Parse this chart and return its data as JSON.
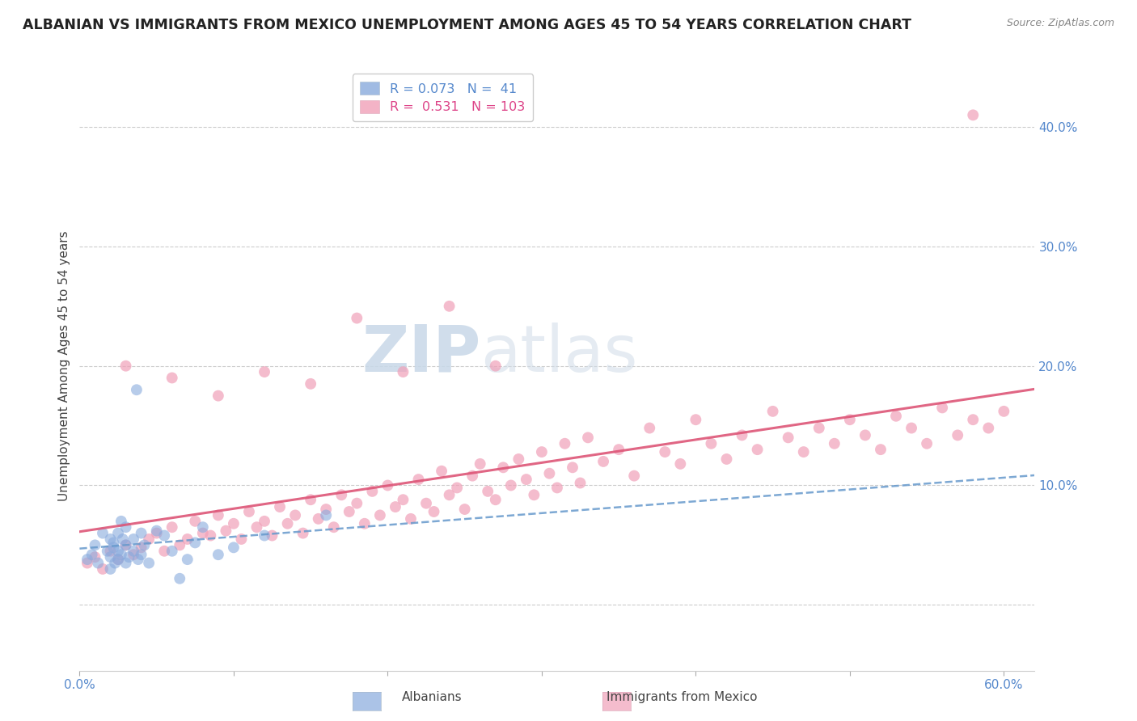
{
  "title": "ALBANIAN VS IMMIGRANTS FROM MEXICO UNEMPLOYMENT AMONG AGES 45 TO 54 YEARS CORRELATION CHART",
  "source": "Source: ZipAtlas.com",
  "ylabel": "Unemployment Among Ages 45 to 54 years",
  "xlim": [
    0.0,
    0.62
  ],
  "ylim": [
    -0.055,
    0.455
  ],
  "yticks": [
    0.0,
    0.1,
    0.2,
    0.3,
    0.4
  ],
  "ytick_labels": [
    "",
    "10.0%",
    "20.0%",
    "30.0%",
    "40.0%"
  ],
  "xticks": [
    0.0,
    0.1,
    0.2,
    0.3,
    0.4,
    0.5,
    0.6
  ],
  "xtick_labels": [
    "0.0%",
    "",
    "",
    "",
    "",
    "",
    "60.0%"
  ],
  "grid_color": "#cccccc",
  "background_color": "#ffffff",
  "watermark_zip": "ZIP",
  "watermark_atlas": "atlas",
  "albanian": {
    "R": 0.073,
    "N": 41,
    "color": "#88aadd",
    "line_color": "#6699cc",
    "label": "Albanians",
    "x": [
      0.005,
      0.008,
      0.01,
      0.012,
      0.015,
      0.018,
      0.02,
      0.02,
      0.02,
      0.022,
      0.022,
      0.023,
      0.025,
      0.025,
      0.025,
      0.027,
      0.027,
      0.028,
      0.03,
      0.03,
      0.03,
      0.032,
      0.035,
      0.035,
      0.037,
      0.038,
      0.04,
      0.04,
      0.042,
      0.045,
      0.05,
      0.055,
      0.06,
      0.065,
      0.07,
      0.075,
      0.08,
      0.09,
      0.1,
      0.12,
      0.16
    ],
    "y": [
      0.038,
      0.042,
      0.05,
      0.035,
      0.06,
      0.045,
      0.055,
      0.04,
      0.03,
      0.048,
      0.052,
      0.035,
      0.06,
      0.045,
      0.038,
      0.07,
      0.042,
      0.055,
      0.05,
      0.035,
      0.065,
      0.04,
      0.045,
      0.055,
      0.18,
      0.038,
      0.06,
      0.042,
      0.05,
      0.035,
      0.062,
      0.058,
      0.045,
      0.022,
      0.038,
      0.052,
      0.065,
      0.042,
      0.048,
      0.058,
      0.075
    ]
  },
  "mexico": {
    "R": 0.531,
    "N": 103,
    "color": "#f0a0b8",
    "line_color": "#dd5577",
    "label": "Immigrants from Mexico",
    "x": [
      0.005,
      0.01,
      0.015,
      0.02,
      0.025,
      0.03,
      0.035,
      0.04,
      0.045,
      0.05,
      0.055,
      0.06,
      0.065,
      0.07,
      0.075,
      0.08,
      0.085,
      0.09,
      0.095,
      0.1,
      0.105,
      0.11,
      0.115,
      0.12,
      0.125,
      0.13,
      0.135,
      0.14,
      0.145,
      0.15,
      0.155,
      0.16,
      0.165,
      0.17,
      0.175,
      0.18,
      0.185,
      0.19,
      0.195,
      0.2,
      0.205,
      0.21,
      0.215,
      0.22,
      0.225,
      0.23,
      0.235,
      0.24,
      0.245,
      0.25,
      0.255,
      0.26,
      0.265,
      0.27,
      0.275,
      0.28,
      0.285,
      0.29,
      0.295,
      0.3,
      0.305,
      0.31,
      0.315,
      0.32,
      0.325,
      0.33,
      0.34,
      0.35,
      0.36,
      0.37,
      0.38,
      0.39,
      0.4,
      0.41,
      0.42,
      0.43,
      0.44,
      0.45,
      0.46,
      0.47,
      0.48,
      0.49,
      0.5,
      0.51,
      0.52,
      0.53,
      0.54,
      0.55,
      0.56,
      0.57,
      0.58,
      0.59,
      0.6,
      0.03,
      0.06,
      0.09,
      0.12,
      0.15,
      0.18,
      0.21,
      0.24,
      0.27,
      0.58
    ],
    "y": [
      0.035,
      0.04,
      0.03,
      0.045,
      0.038,
      0.05,
      0.042,
      0.048,
      0.055,
      0.06,
      0.045,
      0.065,
      0.05,
      0.055,
      0.07,
      0.06,
      0.058,
      0.075,
      0.062,
      0.068,
      0.055,
      0.078,
      0.065,
      0.07,
      0.058,
      0.082,
      0.068,
      0.075,
      0.06,
      0.088,
      0.072,
      0.08,
      0.065,
      0.092,
      0.078,
      0.085,
      0.068,
      0.095,
      0.075,
      0.1,
      0.082,
      0.088,
      0.072,
      0.105,
      0.085,
      0.078,
      0.112,
      0.092,
      0.098,
      0.08,
      0.108,
      0.118,
      0.095,
      0.088,
      0.115,
      0.1,
      0.122,
      0.105,
      0.092,
      0.128,
      0.11,
      0.098,
      0.135,
      0.115,
      0.102,
      0.14,
      0.12,
      0.13,
      0.108,
      0.148,
      0.128,
      0.118,
      0.155,
      0.135,
      0.122,
      0.142,
      0.13,
      0.162,
      0.14,
      0.128,
      0.148,
      0.135,
      0.155,
      0.142,
      0.13,
      0.158,
      0.148,
      0.135,
      0.165,
      0.142,
      0.155,
      0.148,
      0.162,
      0.2,
      0.19,
      0.175,
      0.195,
      0.185,
      0.24,
      0.195,
      0.25,
      0.2,
      0.41
    ]
  },
  "title_color": "#222222",
  "title_fontsize": 12.5,
  "axis_label_color": "#444444",
  "tick_color": "#5588cc",
  "legend_R_color": "#5588cc",
  "legend_R2_color": "#dd4488"
}
